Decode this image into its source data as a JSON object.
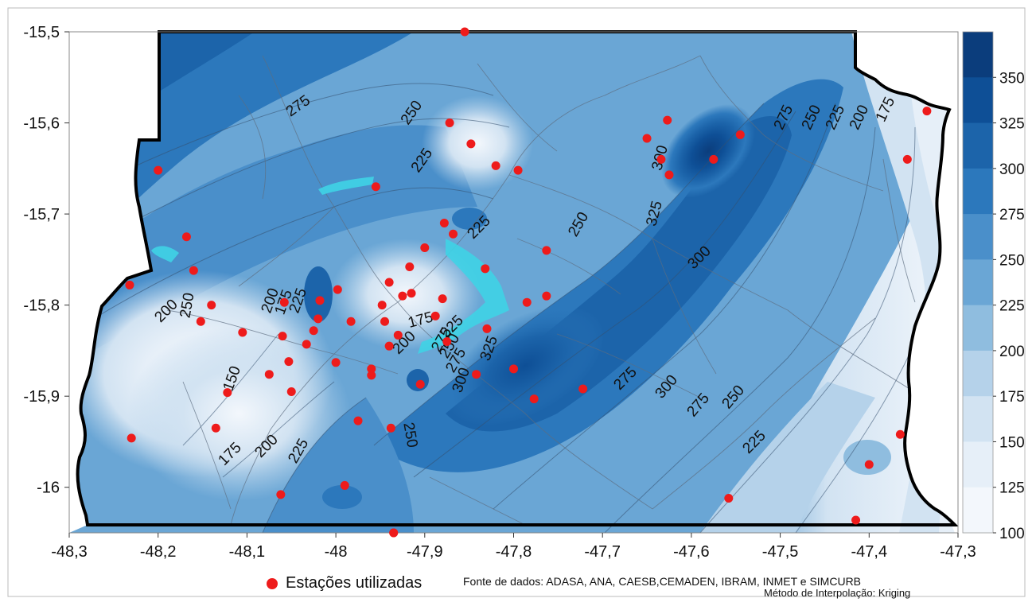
{
  "axes": {
    "x_ticks": [
      "-48,3",
      "-48,2",
      "-48,1",
      "-48",
      "-47,9",
      "-47,8",
      "-47,7",
      "-47,6",
      "-47,5",
      "-47,4",
      "-47,3"
    ],
    "y_ticks": [
      "-15,5",
      "-15,6",
      "-15,7",
      "-15,8",
      "-15,9",
      "-16"
    ],
    "x_range": [
      -48.3,
      -47.3
    ],
    "y_range": [
      -16.05,
      -15.5
    ]
  },
  "legend": {
    "values": [
      "350",
      "325",
      "300",
      "275",
      "250",
      "225",
      "200",
      "175",
      "150",
      "125",
      "100"
    ],
    "colors": [
      "#0b3d7c",
      "#0e4f96",
      "#1c64aa",
      "#2c78bc",
      "#4a8fca",
      "#6aa6d5",
      "#8fbddf",
      "#b5d2ea",
      "#d2e3f2",
      "#e6eff8",
      "#f3f7fc"
    ]
  },
  "contour_labels": [
    "275",
    "250",
    "225",
    "250",
    "300",
    "325",
    "300",
    "275",
    "250",
    "225",
    "200",
    "175",
    "225",
    "200",
    "150",
    "175",
    "200",
    "225",
    "250",
    "275",
    "300",
    "325",
    "175",
    "200",
    "225",
    "250",
    "275",
    "300",
    "275",
    "250",
    "225",
    "200",
    "175",
    "225",
    "250",
    "275"
  ],
  "footer": {
    "station_legend": "Estações utilizadas",
    "source": "Fonte de dados: ADASA, ANA, CAESB,CEMADEN, IBRAM, INMET e SIMCURB",
    "method": "Método de Interpolação: Kriging"
  },
  "colors": {
    "station": "#ee1b1b",
    "lake": "#3fd3e6",
    "border": "#000000"
  },
  "stations": [
    [
      -47.855,
      -15.5
    ],
    [
      -48.2,
      -15.652
    ],
    [
      -48.232,
      -15.778
    ],
    [
      -48.168,
      -15.725
    ],
    [
      -48.16,
      -15.762
    ],
    [
      -48.152,
      -15.818
    ],
    [
      -48.14,
      -15.8
    ],
    [
      -48.105,
      -15.83
    ],
    [
      -48.122,
      -15.896
    ],
    [
      -48.135,
      -15.935
    ],
    [
      -48.23,
      -15.946
    ],
    [
      -48.075,
      -15.876
    ],
    [
      -48.058,
      -15.797
    ],
    [
      -48.06,
      -15.834
    ],
    [
      -48.053,
      -15.862
    ],
    [
      -48.05,
      -15.895
    ],
    [
      -48.033,
      -15.843
    ],
    [
      -48.025,
      -15.828
    ],
    [
      -48.02,
      -15.815
    ],
    [
      -48.018,
      -15.795
    ],
    [
      -47.998,
      -15.783
    ],
    [
      -48.0,
      -15.863
    ],
    [
      -47.983,
      -15.818
    ],
    [
      -47.975,
      -15.927
    ],
    [
      -47.96,
      -15.87
    ],
    [
      -47.96,
      -15.877
    ],
    [
      -47.955,
      -15.67
    ],
    [
      -47.948,
      -15.8
    ],
    [
      -47.945,
      -15.818
    ],
    [
      -47.94,
      -15.845
    ],
    [
      -47.94,
      -15.775
    ],
    [
      -47.93,
      -15.833
    ],
    [
      -47.925,
      -15.79
    ],
    [
      -47.917,
      -15.758
    ],
    [
      -47.915,
      -15.787
    ],
    [
      -47.905,
      -15.887
    ],
    [
      -47.9,
      -15.737
    ],
    [
      -47.888,
      -15.812
    ],
    [
      -47.88,
      -15.793
    ],
    [
      -47.878,
      -15.71
    ],
    [
      -47.875,
      -15.84
    ],
    [
      -47.872,
      -15.6
    ],
    [
      -47.868,
      -15.722
    ],
    [
      -47.848,
      -15.623
    ],
    [
      -47.842,
      -15.876
    ],
    [
      -47.832,
      -15.76
    ],
    [
      -47.83,
      -15.826
    ],
    [
      -47.82,
      -15.647
    ],
    [
      -47.8,
      -15.87
    ],
    [
      -47.795,
      -15.652
    ],
    [
      -47.785,
      -15.797
    ],
    [
      -47.777,
      -15.903
    ],
    [
      -47.763,
      -15.79
    ],
    [
      -47.763,
      -15.74
    ],
    [
      -47.722,
      -15.892
    ],
    [
      -47.65,
      -15.617
    ],
    [
      -47.634,
      -15.64
    ],
    [
      -47.627,
      -15.597
    ],
    [
      -47.625,
      -15.657
    ],
    [
      -47.575,
      -15.64
    ],
    [
      -47.545,
      -15.613
    ],
    [
      -47.938,
      -15.935
    ],
    [
      -47.99,
      -15.998
    ],
    [
      -48.062,
      -16.008
    ],
    [
      -47.935,
      -16.05
    ],
    [
      -47.558,
      -16.012
    ],
    [
      -47.415,
      -16.036
    ],
    [
      -47.4,
      -15.975
    ],
    [
      -47.365,
      -15.942
    ],
    [
      -47.357,
      -15.64
    ],
    [
      -47.335,
      -15.587
    ],
    [
      -47.935,
      -16.05
    ]
  ]
}
